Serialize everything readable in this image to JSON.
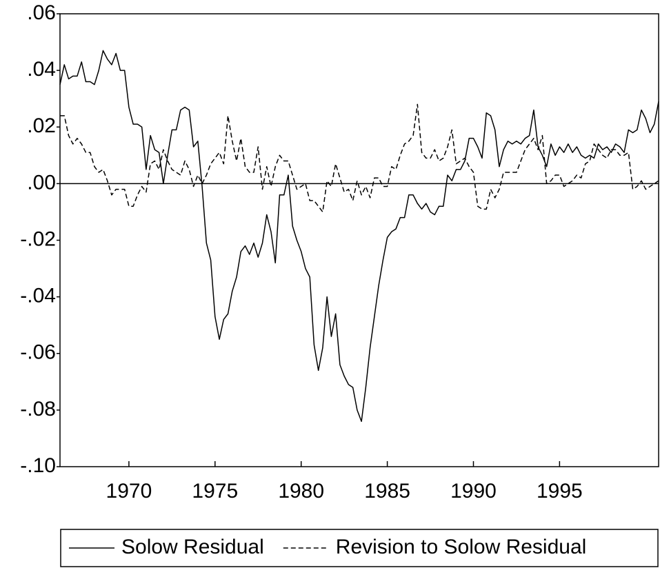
{
  "chart_data": {
    "type": "line",
    "x": [
      1966,
      1966.25,
      1966.5,
      1966.75,
      1967,
      1967.25,
      1967.5,
      1967.75,
      1968,
      1968.25,
      1968.5,
      1968.75,
      1969,
      1969.25,
      1969.5,
      1969.75,
      1970,
      1970.25,
      1970.5,
      1970.75,
      1971,
      1971.25,
      1971.5,
      1971.75,
      1972,
      1972.25,
      1972.5,
      1972.75,
      1973,
      1973.25,
      1973.5,
      1973.75,
      1974,
      1974.25,
      1974.5,
      1974.75,
      1975,
      1975.25,
      1975.5,
      1975.75,
      1976,
      1976.25,
      1976.5,
      1976.75,
      1977,
      1977.25,
      1977.5,
      1977.75,
      1978,
      1978.25,
      1978.5,
      1978.75,
      1979,
      1979.25,
      1979.5,
      1979.75,
      1980,
      1980.25,
      1980.5,
      1980.75,
      1981,
      1981.25,
      1981.5,
      1981.75,
      1982,
      1982.25,
      1982.5,
      1982.75,
      1983,
      1983.25,
      1983.5,
      1983.75,
      1984,
      1984.25,
      1984.5,
      1984.75,
      1985,
      1985.25,
      1985.5,
      1985.75,
      1986,
      1986.25,
      1986.5,
      1986.75,
      1987,
      1987.25,
      1987.5,
      1987.75,
      1988,
      1988.25,
      1988.5,
      1988.75,
      1989,
      1989.25,
      1989.5,
      1989.75,
      1990,
      1990.25,
      1990.5,
      1990.75,
      1991,
      1991.25,
      1991.5,
      1991.75,
      1992,
      1992.25,
      1992.5,
      1992.75,
      1993,
      1993.25,
      1993.5,
      1993.75,
      1994,
      1994.25,
      1994.5,
      1994.75,
      1995,
      1995.25,
      1995.5,
      1995.75,
      1996,
      1996.25,
      1996.5,
      1996.75,
      1997,
      1997.25,
      1997.5,
      1997.75,
      1998,
      1998.25,
      1998.5,
      1998.75,
      1999,
      1999.25,
      1999.5,
      1999.75,
      2000,
      2000.25,
      2000.5,
      2000.75
    ],
    "series": [
      {
        "name": "Solow Residual",
        "color": "#000000",
        "dash": "solid",
        "values": [
          0.035,
          0.042,
          0.037,
          0.038,
          0.038,
          0.043,
          0.036,
          0.036,
          0.035,
          0.04,
          0.047,
          0.044,
          0.042,
          0.046,
          0.04,
          0.04,
          0.027,
          0.021,
          0.021,
          0.02,
          0.005,
          0.017,
          0.012,
          0.011,
          0.0,
          0.01,
          0.019,
          0.019,
          0.026,
          0.027,
          0.026,
          0.013,
          0.015,
          -0.001,
          -0.021,
          -0.027,
          -0.047,
          -0.055,
          -0.048,
          -0.046,
          -0.038,
          -0.033,
          -0.024,
          -0.022,
          -0.025,
          -0.021,
          -0.026,
          -0.021,
          -0.011,
          -0.017,
          -0.028,
          -0.004,
          -0.004,
          0.003,
          -0.015,
          -0.02,
          -0.024,
          -0.03,
          -0.033,
          -0.057,
          -0.066,
          -0.058,
          -0.04,
          -0.054,
          -0.046,
          -0.064,
          -0.068,
          -0.071,
          -0.072,
          -0.08,
          -0.084,
          -0.072,
          -0.058,
          -0.047,
          -0.036,
          -0.027,
          -0.019,
          -0.017,
          -0.016,
          -0.012,
          -0.012,
          -0.004,
          -0.004,
          -0.007,
          -0.009,
          -0.007,
          -0.01,
          -0.011,
          -0.008,
          -0.008,
          0.003,
          0.001,
          0.005,
          0.005,
          0.008,
          0.016,
          0.016,
          0.013,
          0.009,
          0.025,
          0.024,
          0.019,
          0.006,
          0.012,
          0.015,
          0.014,
          0.015,
          0.014,
          0.016,
          0.017,
          0.026,
          0.013,
          0.01,
          0.006,
          0.014,
          0.01,
          0.013,
          0.011,
          0.014,
          0.011,
          0.013,
          0.01,
          0.009,
          0.01,
          0.009,
          0.014,
          0.012,
          0.013,
          0.011,
          0.014,
          0.013,
          0.011,
          0.019,
          0.018,
          0.019,
          0.026,
          0.023,
          0.018,
          0.021,
          0.029
        ]
      },
      {
        "name": "Revision to Solow Residual",
        "color": "#000000",
        "dash": "dashed",
        "values": [
          0.024,
          0.024,
          0.017,
          0.014,
          0.016,
          0.014,
          0.011,
          0.011,
          0.006,
          0.004,
          0.005,
          0.001,
          -0.004,
          -0.002,
          -0.002,
          -0.002,
          -0.008,
          -0.008,
          -0.004,
          -0.001,
          -0.003,
          0.007,
          0.008,
          0.005,
          0.012,
          0.008,
          0.005,
          0.004,
          0.003,
          0.008,
          0.005,
          -0.001,
          0.003,
          0.0,
          0.003,
          0.007,
          0.009,
          0.011,
          0.007,
          0.024,
          0.015,
          0.008,
          0.016,
          0.006,
          0.004,
          0.004,
          0.013,
          -0.002,
          0.006,
          -0.001,
          0.006,
          0.01,
          0.008,
          0.008,
          0.003,
          -0.002,
          -0.001,
          0.0,
          -0.006,
          -0.006,
          -0.008,
          -0.01,
          0.001,
          -0.001,
          0.007,
          0.002,
          -0.003,
          -0.002,
          -0.006,
          0.001,
          -0.004,
          -0.001,
          -0.005,
          0.002,
          0.002,
          -0.001,
          -0.001,
          0.006,
          0.005,
          0.01,
          0.014,
          0.015,
          0.017,
          0.028,
          0.011,
          0.009,
          0.009,
          0.012,
          0.008,
          0.009,
          0.013,
          0.019,
          0.007,
          0.008,
          0.009,
          0.006,
          0.004,
          -0.008,
          -0.009,
          -0.009,
          -0.002,
          -0.005,
          -0.002,
          0.004,
          0.004,
          0.004,
          0.004,
          0.008,
          0.012,
          0.014,
          0.016,
          0.012,
          0.017,
          0.0,
          0.001,
          0.003,
          0.003,
          -0.001,
          0.0,
          0.001,
          0.003,
          0.002,
          0.007,
          0.008,
          0.014,
          0.012,
          0.01,
          0.009,
          0.012,
          0.012,
          0.01,
          0.01,
          0.011,
          -0.002,
          -0.001,
          0.001,
          -0.002,
          -0.001,
          0.0,
          0.001
        ]
      }
    ],
    "xlim": [
      1966,
      2000.75
    ],
    "xticks": [
      1970,
      1975,
      1980,
      1985,
      1990,
      1995
    ],
    "ylim": [
      -0.1,
      0.06
    ],
    "yticks": [
      {
        "value": 0.06,
        "label": ".06"
      },
      {
        "value": 0.04,
        "label": ".04"
      },
      {
        "value": 0.02,
        "label": ".02"
      },
      {
        "value": 0,
        "label": ".00"
      },
      {
        "value": -0.02,
        "label": "-.02"
      },
      {
        "value": -0.04,
        "label": "-.04"
      },
      {
        "value": -0.06,
        "label": "-.06"
      },
      {
        "value": -0.08,
        "label": "-.08"
      },
      {
        "value": -0.1,
        "label": "-.10"
      }
    ],
    "zero_line": true,
    "grid": false,
    "legend": "bottom"
  }
}
